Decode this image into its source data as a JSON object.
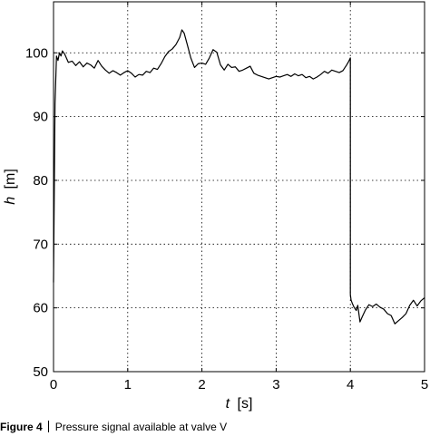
{
  "chart_data": {
    "type": "line",
    "xlabel_var": "t",
    "xlabel_unit": "[s]",
    "ylabel_var": "h",
    "ylabel_unit": "[m]",
    "xlim": [
      0,
      5
    ],
    "ylim": [
      50,
      108
    ],
    "xticks": [
      0,
      1,
      2,
      3,
      4,
      5
    ],
    "yticks": [
      50,
      60,
      70,
      80,
      90,
      100
    ],
    "grid": true,
    "series": [
      {
        "x": [
          0,
          0.02,
          0.04,
          0.06,
          0.08,
          0.1,
          0.12,
          0.15,
          0.2,
          0.25,
          0.3,
          0.35,
          0.4,
          0.45,
          0.5,
          0.55,
          0.6,
          0.65,
          0.7,
          0.75,
          0.8,
          0.85,
          0.9,
          0.95,
          1.0,
          1.05,
          1.1,
          1.15,
          1.2,
          1.25,
          1.3,
          1.35,
          1.4,
          1.45,
          1.5,
          1.55,
          1.6,
          1.65,
          1.7,
          1.73,
          1.76,
          1.8,
          1.85,
          1.9,
          1.95,
          2.0,
          2.05,
          2.1,
          2.15,
          2.2,
          2.25,
          2.3,
          2.35,
          2.4,
          2.45,
          2.5,
          2.55,
          2.6,
          2.65,
          2.7,
          2.75,
          2.8,
          2.85,
          2.9,
          2.95,
          3.0,
          3.05,
          3.1,
          3.15,
          3.2,
          3.25,
          3.3,
          3.35,
          3.4,
          3.45,
          3.5,
          3.55,
          3.6,
          3.65,
          3.7,
          3.75,
          3.8,
          3.85,
          3.9,
          3.95,
          3.98,
          4.0,
          4.0,
          4.01,
          4.03,
          4.05,
          4.08,
          4.1,
          4.13,
          4.16,
          4.2,
          4.25,
          4.3,
          4.35,
          4.4,
          4.45,
          4.5,
          4.55,
          4.6,
          4.65,
          4.7,
          4.75,
          4.8,
          4.85,
          4.9,
          4.95,
          5.0
        ],
        "y": [
          64,
          92,
          99.5,
          98.8,
          100,
          99.5,
          100.3,
          99.8,
          98.5,
          98.7,
          98,
          98.6,
          97.8,
          98.4,
          98.1,
          97.6,
          98.8,
          97.9,
          97.3,
          96.8,
          97.2,
          96.9,
          96.5,
          96.9,
          97.2,
          96.8,
          96.2,
          96.6,
          96.5,
          97.1,
          96.9,
          97.6,
          97.4,
          98.3,
          99.4,
          100.2,
          100.6,
          101.3,
          102.4,
          103.6,
          103.1,
          101.4,
          99.2,
          97.7,
          98.3,
          98.4,
          98.2,
          99.2,
          100.5,
          100.1,
          98.1,
          97.3,
          98.2,
          97.7,
          97.8,
          97.1,
          97.3,
          97.6,
          97.9,
          96.8,
          96.5,
          96.3,
          96.1,
          95.9,
          96.1,
          96.3,
          96.2,
          96.4,
          96.6,
          96.3,
          96.7,
          96.4,
          96.6,
          96.1,
          96.3,
          95.9,
          96.2,
          96.6,
          97.1,
          96.8,
          97.3,
          97.1,
          96.9,
          97.2,
          98.1,
          98.7,
          99.2,
          62.1,
          61.2,
          60.6,
          60.1,
          59.6,
          60.4,
          57.8,
          58.6,
          59.6,
          60.5,
          60.2,
          60.6,
          60.1,
          59.8,
          59.1,
          58.8,
          57.5,
          58.0,
          58.5,
          59.1,
          60.4,
          61.2,
          60.3,
          61.1,
          61.6
        ]
      }
    ]
  },
  "caption": {
    "figure_label": "Figure 4",
    "text": "Pressure signal available at valve V"
  }
}
